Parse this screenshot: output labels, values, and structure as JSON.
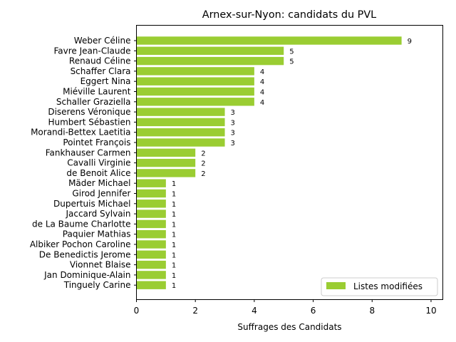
{
  "chart_data": {
    "type": "bar",
    "orientation": "horizontal",
    "title": "Arnex-sur-Nyon: candidats du PVL",
    "xlabel": "Suffrages des Candidats",
    "ylabel": "",
    "xlim": [
      0,
      10.4
    ],
    "xticks": [
      "0",
      "2",
      "4",
      "6",
      "8",
      "10"
    ],
    "xtick_values": [
      0,
      2,
      4,
      6,
      8,
      10
    ],
    "grid": false,
    "legend_position": "lower-right",
    "categories": [
      "Weber Céline",
      "Favre Jean-Claude",
      "Renaud Céline",
      "Schaffer Clara",
      "Eggert Nina",
      "Miéville Laurent",
      "Schaller Graziella",
      "Diserens Véronique",
      "Humbert Sébastien",
      "Morandi-Bettex Laetitia",
      "Pointet François",
      "Fankhauser Carmen",
      "Cavalli Virginie",
      "de Benoit Alice",
      "Mäder Michael",
      "Girod Jennifer",
      "Dupertuis Michael",
      "Jaccard Sylvain",
      "de La Baume Charlotte",
      "Paquier Mathias",
      "Albiker Pochon Caroline",
      "De Benedictis Jerome",
      "Vionnet Blaise",
      "Jan Dominique-Alain",
      "Tinguely Carine"
    ],
    "series": [
      {
        "name": "Listes modifiées",
        "color": "#9acd32",
        "values": [
          9,
          5,
          5,
          4,
          4,
          4,
          4,
          3,
          3,
          3,
          3,
          2,
          2,
          2,
          1,
          1,
          1,
          1,
          1,
          1,
          1,
          1,
          1,
          1,
          1
        ],
        "data_labels": [
          "9",
          "5",
          "5",
          "4",
          "4",
          "4",
          "4",
          "3",
          "3",
          "3",
          "3",
          "2",
          "2",
          "2",
          "1",
          "1",
          "1",
          "1",
          "1",
          "1",
          "1",
          "1",
          "1",
          "1",
          "1"
        ]
      }
    ]
  }
}
